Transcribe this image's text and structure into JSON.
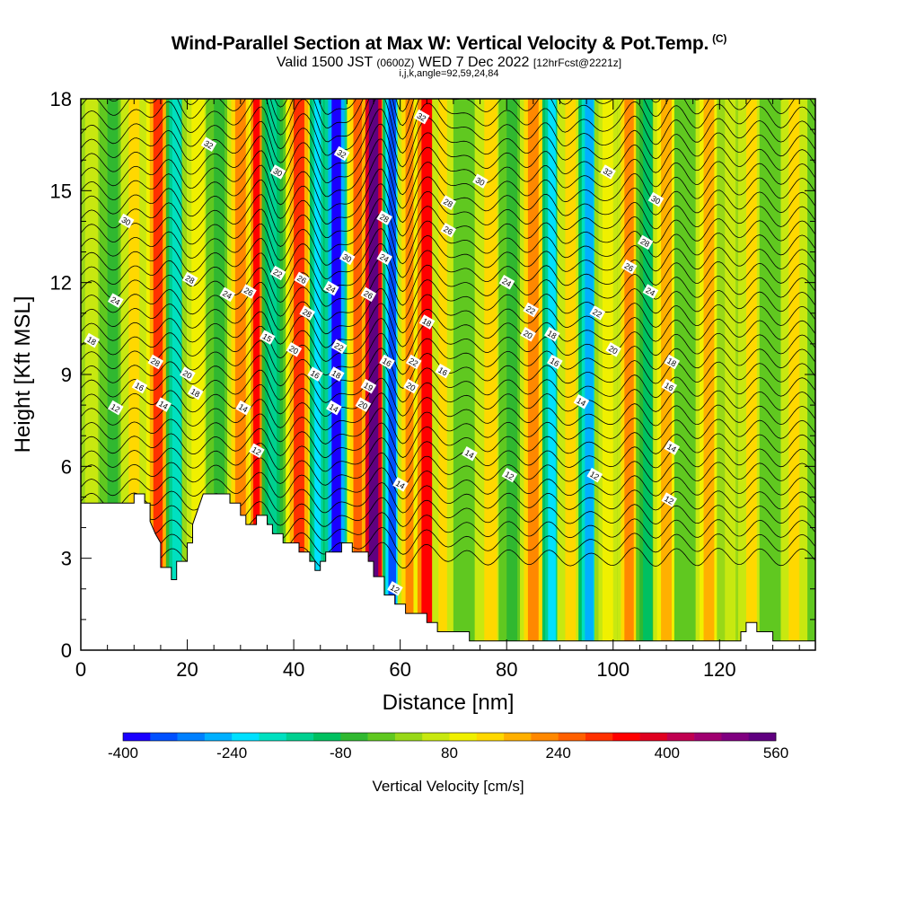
{
  "header": {
    "title": "Wind-Parallel Section at Max W: Vertical Velocity & Pot.Temp.",
    "copyright": "(C)",
    "subtitle_a": "Valid 1500 JST ",
    "subtitle_b": "(0600Z)",
    "subtitle_c": " WED 7 Dec 2022 ",
    "subtitle_d": "[12hrFcst@2221z]",
    "info": "i,j,k,angle=92,59,24,84"
  },
  "chart_data": {
    "type": "heatmap",
    "xlabel": "Distance [nm]",
    "ylabel": "Height [Kft MSL]",
    "xlim": [
      0,
      138
    ],
    "ylim": [
      0,
      18
    ],
    "x_ticks": [
      0,
      20,
      40,
      60,
      80,
      100,
      120
    ],
    "y_ticks": [
      0,
      3,
      6,
      9,
      12,
      15,
      18
    ],
    "colorbar": {
      "title": "Vertical Velocity [cm/s]",
      "tick_labels": [
        "-400",
        "-240",
        "-80",
        "80",
        "240",
        "400",
        "560"
      ],
      "tick_values": [
        -400,
        -240,
        -80,
        80,
        240,
        400,
        560
      ],
      "range": [
        -400,
        560
      ],
      "colors": [
        "#1a00ff",
        "#0050ff",
        "#0080ff",
        "#00b0ff",
        "#00e0ff",
        "#00e0c0",
        "#00d090",
        "#00c060",
        "#30b830",
        "#60c820",
        "#98d818",
        "#c8e810",
        "#f0f000",
        "#ffd800",
        "#ffb000",
        "#ff8800",
        "#ff6000",
        "#ff3000",
        "#ff0000",
        "#e00020",
        "#c00050",
        "#a00070",
        "#800080",
        "#600080"
      ]
    },
    "velocity_bands": [
      {
        "x": 2,
        "w": 3,
        "v": 60
      },
      {
        "x": 6,
        "w": 2.5,
        "v": -60
      },
      {
        "x": 10,
        "w": 2.5,
        "v": 120
      },
      {
        "x": 14.5,
        "w": 2.2,
        "v": 300
      },
      {
        "x": 18,
        "w": 2,
        "v": -200
      },
      {
        "x": 22,
        "w": 3,
        "v": 100
      },
      {
        "x": 26,
        "w": 2.5,
        "v": -60
      },
      {
        "x": 30,
        "w": 2.5,
        "v": 200
      },
      {
        "x": 33,
        "w": 1.5,
        "v": 320
      },
      {
        "x": 36,
        "w": 2,
        "v": -140
      },
      {
        "x": 41,
        "w": 2.5,
        "v": 280
      },
      {
        "x": 44.5,
        "w": 1.5,
        "v": -240
      },
      {
        "x": 48,
        "w": 2.2,
        "v": -380
      },
      {
        "x": 52,
        "w": 2,
        "v": 240
      },
      {
        "x": 55,
        "w": 2.2,
        "v": 560
      },
      {
        "x": 58.5,
        "w": 1.8,
        "v": -330
      },
      {
        "x": 62,
        "w": 2.5,
        "v": 200
      },
      {
        "x": 65,
        "w": 2.5,
        "v": 340
      },
      {
        "x": 68,
        "w": 2,
        "v": 120
      },
      {
        "x": 73,
        "w": 3,
        "v": -40
      },
      {
        "x": 77,
        "w": 3,
        "v": 120
      },
      {
        "x": 81,
        "w": 2.5,
        "v": -60
      },
      {
        "x": 85,
        "w": 2.5,
        "v": 200
      },
      {
        "x": 88.5,
        "w": 1.8,
        "v": -240
      },
      {
        "x": 92,
        "w": 2.5,
        "v": 120
      },
      {
        "x": 95.5,
        "w": 2,
        "v": -280
      },
      {
        "x": 99,
        "w": 2.5,
        "v": 80
      },
      {
        "x": 103,
        "w": 2.2,
        "v": 200
      },
      {
        "x": 106.5,
        "w": 2.2,
        "v": -100
      },
      {
        "x": 110,
        "w": 2.5,
        "v": 160
      },
      {
        "x": 114,
        "w": 2.5,
        "v": -40
      },
      {
        "x": 118,
        "w": 2.5,
        "v": 160
      },
      {
        "x": 122,
        "w": 2.5,
        "v": 40
      },
      {
        "x": 126,
        "w": 2.5,
        "v": 120
      },
      {
        "x": 130,
        "w": 2.5,
        "v": -20
      },
      {
        "x": 134,
        "w": 2.5,
        "v": 120
      }
    ],
    "terrain": [
      [
        0,
        4.8
      ],
      [
        10,
        4.8
      ],
      [
        10,
        5.1
      ],
      [
        12,
        5.1
      ],
      [
        12,
        4.8
      ],
      [
        13,
        4.8
      ],
      [
        13,
        4.2
      ],
      [
        14,
        3.8
      ],
      [
        15,
        3.5
      ],
      [
        15,
        2.7
      ],
      [
        17,
        2.7
      ],
      [
        17,
        2.3
      ],
      [
        18,
        2.3
      ],
      [
        18,
        2.9
      ],
      [
        20,
        2.9
      ],
      [
        20,
        3.5
      ],
      [
        21,
        3.5
      ],
      [
        21,
        4.1
      ],
      [
        22,
        4.6
      ],
      [
        23,
        5.1
      ],
      [
        28,
        5.1
      ],
      [
        28,
        4.8
      ],
      [
        30,
        4.8
      ],
      [
        30,
        4.4
      ],
      [
        31,
        4.4
      ],
      [
        31,
        4.1
      ],
      [
        33,
        4.1
      ],
      [
        33,
        4.4
      ],
      [
        35,
        4.4
      ],
      [
        35,
        4.1
      ],
      [
        36,
        4.1
      ],
      [
        36,
        3.8
      ],
      [
        38,
        3.8
      ],
      [
        38,
        3.5
      ],
      [
        41,
        3.5
      ],
      [
        41,
        3.2
      ],
      [
        43,
        3.2
      ],
      [
        43,
        2.9
      ],
      [
        44,
        2.9
      ],
      [
        44,
        2.6
      ],
      [
        45,
        2.6
      ],
      [
        45,
        2.9
      ],
      [
        46,
        2.9
      ],
      [
        46,
        3.2
      ],
      [
        49,
        3.2
      ],
      [
        49,
        3.5
      ],
      [
        51,
        3.5
      ],
      [
        51,
        3.2
      ],
      [
        54,
        3.2
      ],
      [
        54,
        2.9
      ],
      [
        55,
        2.9
      ],
      [
        55,
        2.4
      ],
      [
        57,
        2.4
      ],
      [
        57,
        1.8
      ],
      [
        59,
        1.8
      ],
      [
        59,
        1.5
      ],
      [
        61,
        1.5
      ],
      [
        61,
        1.2
      ],
      [
        65,
        1.2
      ],
      [
        65,
        0.9
      ],
      [
        67,
        0.9
      ],
      [
        67,
        0.6
      ],
      [
        73,
        0.6
      ],
      [
        73,
        0.3
      ],
      [
        78,
        0.3
      ],
      [
        124,
        0.3
      ],
      [
        124,
        0.6
      ],
      [
        125,
        0.6
      ],
      [
        125,
        0.9
      ],
      [
        127,
        0.9
      ],
      [
        127,
        0.6
      ],
      [
        130,
        0.6
      ],
      [
        130,
        0.3
      ],
      [
        138,
        0.3
      ]
    ],
    "contour_labels": [
      {
        "text": "32",
        "x": 24,
        "y": 16.5
      },
      {
        "text": "30",
        "x": 37,
        "y": 15.6
      },
      {
        "text": "32",
        "x": 49,
        "y": 16.2
      },
      {
        "text": "32",
        "x": 64,
        "y": 17.4
      },
      {
        "text": "30",
        "x": 75,
        "y": 15.3
      },
      {
        "text": "32",
        "x": 99,
        "y": 15.6
      },
      {
        "text": "30",
        "x": 108,
        "y": 14.7
      },
      {
        "text": "30",
        "x": 8.5,
        "y": 14.0
      },
      {
        "text": "28",
        "x": 69,
        "y": 14.6
      },
      {
        "text": "28",
        "x": 57,
        "y": 14.1
      },
      {
        "text": "26",
        "x": 69,
        "y": 13.7
      },
      {
        "text": "28",
        "x": 106,
        "y": 13.3
      },
      {
        "text": "26",
        "x": 103,
        "y": 12.5
      },
      {
        "text": "30",
        "x": 50,
        "y": 12.8
      },
      {
        "text": "24",
        "x": 57,
        "y": 12.8
      },
      {
        "text": "28",
        "x": 20.5,
        "y": 12.1
      },
      {
        "text": "22",
        "x": 37,
        "y": 12.3
      },
      {
        "text": "26",
        "x": 41.5,
        "y": 12.1
      },
      {
        "text": "24",
        "x": 47,
        "y": 11.8
      },
      {
        "text": "24",
        "x": 27.5,
        "y": 11.6
      },
      {
        "text": "26",
        "x": 31.5,
        "y": 11.7
      },
      {
        "text": "26",
        "x": 54,
        "y": 11.6
      },
      {
        "text": "24",
        "x": 80,
        "y": 12.0
      },
      {
        "text": "24",
        "x": 107,
        "y": 11.7
      },
      {
        "text": "24",
        "x": 6.5,
        "y": 11.4
      },
      {
        "text": "22",
        "x": 84.5,
        "y": 11.1
      },
      {
        "text": "28",
        "x": 42.5,
        "y": 11.0
      },
      {
        "text": "22",
        "x": 97,
        "y": 11.0
      },
      {
        "text": "18",
        "x": 65,
        "y": 10.7
      },
      {
        "text": "18",
        "x": 2,
        "y": 10.1
      },
      {
        "text": "15",
        "x": 35,
        "y": 10.2
      },
      {
        "text": "20",
        "x": 84,
        "y": 10.3
      },
      {
        "text": "18",
        "x": 88.5,
        "y": 10.3
      },
      {
        "text": "22",
        "x": 48.5,
        "y": 9.9
      },
      {
        "text": "20",
        "x": 40,
        "y": 9.8
      },
      {
        "text": "20",
        "x": 100,
        "y": 9.8
      },
      {
        "text": "16",
        "x": 57.5,
        "y": 9.4
      },
      {
        "text": "22",
        "x": 62.5,
        "y": 9.4
      },
      {
        "text": "18",
        "x": 111,
        "y": 9.4
      },
      {
        "text": "16",
        "x": 89,
        "y": 9.4
      },
      {
        "text": "28",
        "x": 14,
        "y": 9.4
      },
      {
        "text": "20",
        "x": 20,
        "y": 9.0
      },
      {
        "text": "16",
        "x": 68,
        "y": 9.1
      },
      {
        "text": "16",
        "x": 44,
        "y": 9.0
      },
      {
        "text": "18",
        "x": 48,
        "y": 9.0
      },
      {
        "text": "19",
        "x": 54,
        "y": 8.6
      },
      {
        "text": "20",
        "x": 62,
        "y": 8.6
      },
      {
        "text": "16",
        "x": 11,
        "y": 8.6
      },
      {
        "text": "16",
        "x": 110.5,
        "y": 8.6
      },
      {
        "text": "18",
        "x": 21.5,
        "y": 8.4
      },
      {
        "text": "14",
        "x": 15.5,
        "y": 8.0
      },
      {
        "text": "14",
        "x": 30.5,
        "y": 7.9
      },
      {
        "text": "14",
        "x": 47.5,
        "y": 7.9
      },
      {
        "text": "20",
        "x": 53,
        "y": 8.0
      },
      {
        "text": "14",
        "x": 94,
        "y": 8.1
      },
      {
        "text": "12",
        "x": 6.5,
        "y": 7.9
      },
      {
        "text": "12",
        "x": 33,
        "y": 6.5
      },
      {
        "text": "14",
        "x": 73,
        "y": 6.4
      },
      {
        "text": "14",
        "x": 111,
        "y": 6.6
      },
      {
        "text": "12",
        "x": 80.5,
        "y": 5.7
      },
      {
        "text": "12",
        "x": 96.5,
        "y": 5.7
      },
      {
        "text": "14",
        "x": 60,
        "y": 5.4
      },
      {
        "text": "12",
        "x": 110.5,
        "y": 4.9
      },
      {
        "text": "12",
        "x": 59,
        "y": 2.0
      }
    ]
  }
}
